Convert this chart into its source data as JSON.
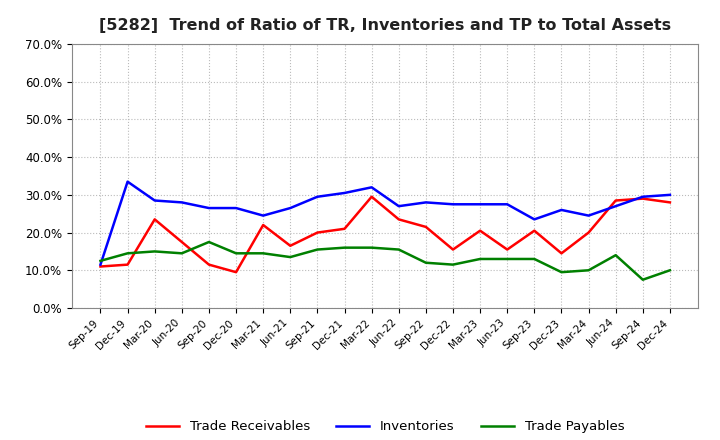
{
  "title": "[5282]  Trend of Ratio of TR, Inventories and TP to Total Assets",
  "x_labels": [
    "Sep-19",
    "Dec-19",
    "Mar-20",
    "Jun-20",
    "Sep-20",
    "Dec-20",
    "Mar-21",
    "Jun-21",
    "Sep-21",
    "Dec-21",
    "Mar-22",
    "Jun-22",
    "Sep-22",
    "Dec-22",
    "Mar-23",
    "Jun-23",
    "Sep-23",
    "Dec-23",
    "Mar-24",
    "Jun-24",
    "Sep-24",
    "Dec-24"
  ],
  "trade_receivables": [
    0.11,
    0.115,
    0.235,
    0.175,
    0.115,
    0.095,
    0.22,
    0.165,
    0.2,
    0.21,
    0.295,
    0.235,
    0.215,
    0.155,
    0.205,
    0.155,
    0.205,
    0.145,
    0.2,
    0.285,
    0.29,
    0.28
  ],
  "inventories": [
    0.115,
    0.335,
    0.285,
    0.28,
    0.265,
    0.265,
    0.245,
    0.265,
    0.295,
    0.305,
    0.32,
    0.27,
    0.28,
    0.275,
    0.275,
    0.275,
    0.235,
    0.26,
    0.245,
    0.27,
    0.295,
    0.3
  ],
  "trade_payables": [
    0.125,
    0.145,
    0.15,
    0.145,
    0.175,
    0.145,
    0.145,
    0.135,
    0.155,
    0.16,
    0.16,
    0.155,
    0.12,
    0.115,
    0.13,
    0.13,
    0.13,
    0.095,
    0.1,
    0.14,
    0.075,
    0.1
  ],
  "tr_color": "#FF0000",
  "inv_color": "#0000FF",
  "tp_color": "#008000",
  "ylim": [
    0.0,
    0.7
  ],
  "yticks": [
    0.0,
    0.1,
    0.2,
    0.3,
    0.4,
    0.5,
    0.6,
    0.7
  ],
  "background_color": "#FFFFFF",
  "grid_color": "#BBBBBB"
}
